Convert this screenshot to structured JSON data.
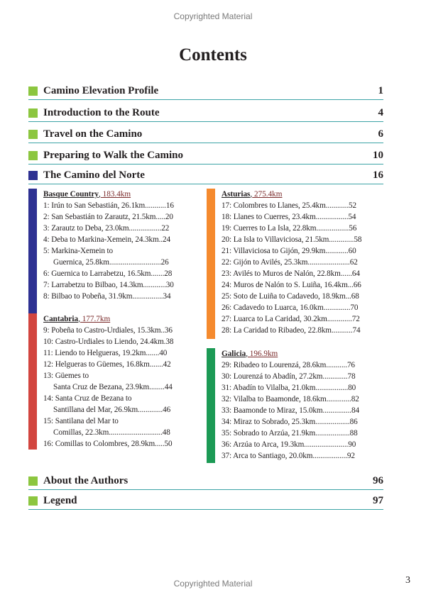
{
  "watermark": "Copyrighted Material",
  "title": "Contents",
  "page_number": "3",
  "colors": {
    "square_green": "#8cc63f",
    "square_blue": "#2e3192",
    "rule_teal": "#3ca3a6",
    "basque": "#2e3192",
    "cantabria": "#d2453f",
    "asturias": "#f58a2e",
    "galicia": "#1c9a55"
  },
  "toc_top": [
    {
      "label": "Camino Elevation Profile",
      "page": "1",
      "square": "green"
    },
    {
      "label": "Introduction to the Route",
      "page": "4",
      "square": "green"
    },
    {
      "label": "Travel on the Camino",
      "page": "6",
      "square": "green"
    },
    {
      "label": "Preparing to Walk the Camino",
      "page": "10",
      "square": "green"
    },
    {
      "label": "The Camino del Norte",
      "page": "16",
      "square": "blue"
    }
  ],
  "regions": [
    {
      "name": "Basque Country",
      "sep": ",",
      "km": " 183.4km",
      "stages": [
        [
          "1: Irún to San Sebastián, 26.1km...........16"
        ],
        [
          "2: San Sebastián to Zarautz, 21.5km.....20"
        ],
        [
          "3: Zarautz to Deba, 23.0km.................22"
        ],
        [
          "4: Deba to Markina-Xemein, 24.3km..24"
        ],
        [
          "5: Markina-Xemein to",
          "Guernica, 25.8km...........................26"
        ],
        [
          "6: Guernica to Larrabetzu, 16.5km.......28"
        ],
        [
          "7: Larrabetzu to Bilbao, 14.3km............30"
        ],
        [
          "8: Bilbao to Pobeña, 31.9km................34"
        ]
      ]
    },
    {
      "name": "Cantabria",
      "sep": ",",
      "km": " 177.7km",
      "stages": [
        [
          "9: Pobeña to Castro-Urdiales, 15.3km..36"
        ],
        [
          "10: Castro-Urdiales to Liendo, 24.4km.38"
        ],
        [
          "11: Liendo to Helgueras, 19.2km.......40"
        ],
        [
          "12: Helgueras to Güemes, 16.8km.......42"
        ],
        [
          "13: Güemes to",
          "Santa Cruz de Bezana, 23.9km........44"
        ],
        [
          "14: Santa Cruz de Bezana to",
          "Santillana del Mar, 26.9km.............46"
        ],
        [
          "15: Santilana del Mar to",
          "Comillas, 22.3km............................48"
        ],
        [
          "16: Comillas to Colombres, 28.9km.....50"
        ]
      ]
    },
    {
      "name": "Asturias",
      "sep": ",",
      "km": " 275.4km",
      "stages": [
        [
          "17: Colombres to Llanes, 25.4km............52"
        ],
        [
          "18: Llanes to Cuerres, 23.4km.................54"
        ],
        [
          "19: Cuerres to La Isla, 22.8km.................56"
        ],
        [
          "20: La Isla to Villaviciosa, 21.5km.............58"
        ],
        [
          "21: Villaviciosa to Gijón, 29.9km............60"
        ],
        [
          "22: Gijón to Avilés, 25.3km......................62"
        ],
        [
          "23: Avilés to Muros de Nalón, 22.8km......64"
        ],
        [
          "24: Muros de Nalón to S. Luiña, 16.4km...66"
        ],
        [
          "25: Soto de Luiña to Cadavedo, 18.9km...68"
        ],
        [
          "26: Cadavedo to Luarca, 16.0km..............70"
        ],
        [
          "27: Luarca to La Caridad, 30.2km.............72"
        ],
        [
          "28: La Caridad to Ribadeo, 22.8km...........74"
        ]
      ]
    },
    {
      "name": "Galicia",
      "sep": ",",
      "km": " 196.9km",
      "stages": [
        [
          "29: Ribadeo to Lourenzá, 28.6km...........76"
        ],
        [
          "30: Lourenzá to Abadín, 27.2km.............78"
        ],
        [
          "31: Abadín to Vilalba, 21.0km.................80"
        ],
        [
          "32: Vilalba to Baamonde, 18.6km.............82"
        ],
        [
          "33: Baamonde to Miraz, 15.0km...............84"
        ],
        [
          "34: Miraz to Sobrado, 25.3km..................86"
        ],
        [
          "35: Sobrado to Arzúa, 21.9km..................88"
        ],
        [
          "36: Arzúa to Arca, 19.3km.......................90"
        ],
        [
          "37: Arca to Santiago, 20.0km..................92"
        ]
      ]
    }
  ],
  "toc_bottom": [
    {
      "label": "About the Authors",
      "page": "96",
      "square": "green"
    },
    {
      "label": "Legend",
      "page": "97",
      "square": "green"
    }
  ]
}
